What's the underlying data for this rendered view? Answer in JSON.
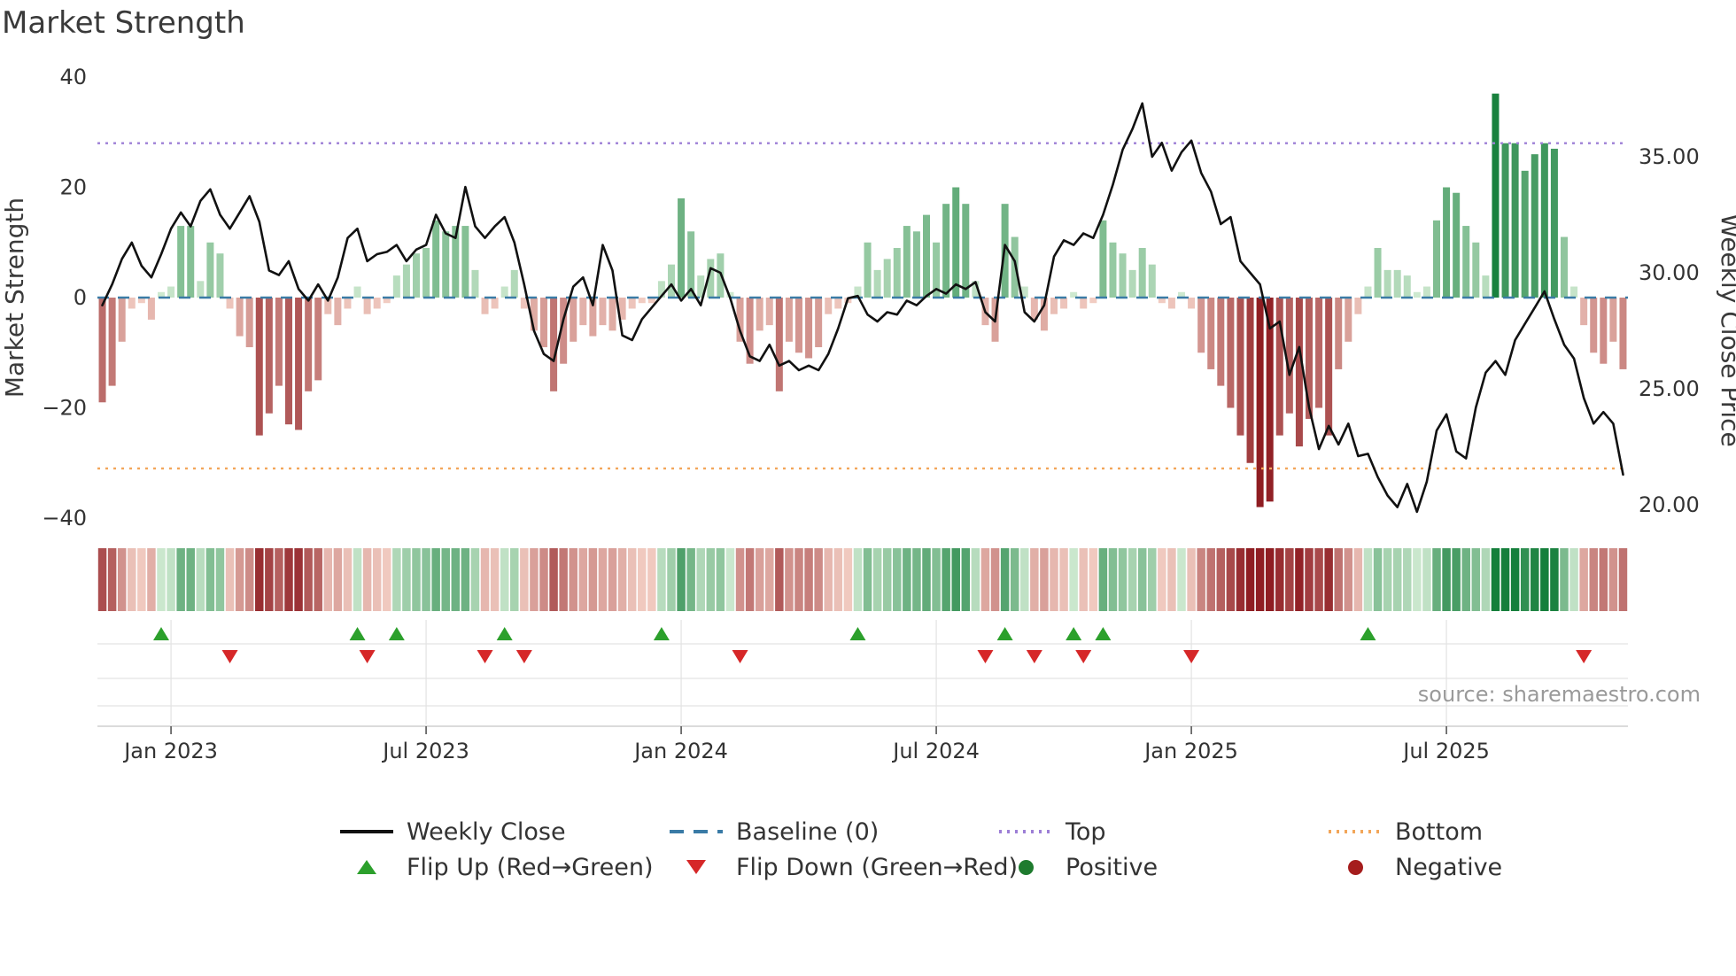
{
  "title": "Market Strength",
  "source": "source: sharemaestro.com",
  "axes": {
    "left_label": "Market Strength",
    "right_label": "Weekly Close Price",
    "left_ticks": [
      {
        "value": -40,
        "label": "−40"
      },
      {
        "value": -20,
        "label": "−20"
      },
      {
        "value": 0,
        "label": "0"
      },
      {
        "value": 20,
        "label": "20"
      },
      {
        "value": 40,
        "label": "40"
      }
    ],
    "right_ticks": [
      {
        "value": 20,
        "label": "20.00"
      },
      {
        "value": 25,
        "label": "25.00"
      },
      {
        "value": 30,
        "label": "30.00"
      },
      {
        "value": 35,
        "label": "35.00"
      }
    ],
    "x_ticks": [
      {
        "index": 7,
        "label": "Jan 2023"
      },
      {
        "index": 33,
        "label": "Jul 2023"
      },
      {
        "index": 59,
        "label": "Jan 2024"
      },
      {
        "index": 85,
        "label": "Jul 2024"
      },
      {
        "index": 111,
        "label": "Jan 2025"
      },
      {
        "index": 137,
        "label": "Jul 2025"
      }
    ]
  },
  "legend": [
    {
      "label": "Weekly Close",
      "type": "line"
    },
    {
      "label": "Baseline (0)",
      "type": "dashed-line"
    },
    {
      "label": "Top",
      "type": "dotted-line"
    },
    {
      "label": "Bottom",
      "type": "dotted-line"
    },
    {
      "label": "Flip Up (Red→Green)",
      "type": "triangle-up"
    },
    {
      "label": "Flip Down (Green→Red)",
      "type": "triangle-down"
    },
    {
      "label": "Positive",
      "type": "dot"
    },
    {
      "label": "Negative",
      "type": "dot"
    }
  ],
  "colors": {
    "line": "#111111",
    "baseline": "#3a7ba6",
    "top": "#9d7fd6",
    "bottom": "#f2a65a",
    "flip_up": "#2ca02c",
    "flip_down": "#d62728",
    "positive": "#1e7b2e",
    "negative": "#a51d1d",
    "pos_light": "#d8efd8",
    "pos_dark": "#157f3b",
    "neg_light": "#f7d6cb",
    "neg_dark": "#8f1d22",
    "grid": "#e3e3e3",
    "spine": "#cfcfcf",
    "text": "#333333",
    "muted": "#9a9a9a"
  },
  "chart_data": {
    "type": "bar",
    "subtype": "diverging bars with overlaid price line, heat strip and flip markers",
    "frequency": "weekly",
    "title": "Market Strength",
    "ylabel_left": "Market Strength",
    "ylabel_right": "Weekly Close Price",
    "strength_ylim": [
      -40,
      40
    ],
    "price_ylim": [
      20,
      38
    ],
    "baseline": 0,
    "top_threshold": 28,
    "bottom_threshold": -31,
    "grid": "off",
    "legend_position": "bottom",
    "strength": [
      -19,
      -16,
      -8,
      -2,
      -1,
      -4,
      1,
      2,
      13,
      13,
      3,
      10,
      8,
      -2,
      -7,
      -9,
      -25,
      -21,
      -16,
      -23,
      -24,
      -17,
      -15,
      -3,
      -5,
      -2,
      2,
      -3,
      -2,
      -1,
      4,
      6,
      8,
      9,
      14,
      12,
      13,
      13,
      5,
      -3,
      -2,
      2,
      5,
      -2,
      -6,
      -9,
      -17,
      -12,
      -8,
      -5,
      -7,
      -5,
      -6,
      -4,
      -2,
      -1,
      -1,
      3,
      6,
      18,
      12,
      4,
      7,
      8,
      1,
      -8,
      -12,
      -6,
      -5,
      -17,
      -8,
      -10,
      -11,
      -9,
      -3,
      -2,
      -1,
      2,
      10,
      5,
      7,
      9,
      13,
      12,
      15,
      10,
      17,
      20,
      17,
      3,
      -5,
      -8,
      17,
      11,
      2,
      -4,
      -6,
      -3,
      -2,
      1,
      -2,
      -1,
      14,
      10,
      8,
      5,
      9,
      6,
      -1,
      -2,
      1,
      -2,
      -10,
      -13,
      -16,
      -20,
      -25,
      -30,
      -38,
      -37,
      -25,
      -21,
      -27,
      -22,
      -20,
      -25,
      -13,
      -8,
      -3,
      2,
      9,
      5,
      5,
      4,
      1,
      2,
      14,
      20,
      19,
      13,
      10,
      4,
      37,
      28,
      28,
      23,
      26,
      28,
      27,
      11,
      2,
      -5,
      -10,
      -12,
      -8,
      -13
    ],
    "close": [
      28.6,
      29.5,
      30.6,
      31.3,
      30.3,
      29.8,
      30.8,
      31.9,
      32.6,
      32.0,
      33.1,
      33.6,
      32.5,
      31.9,
      32.6,
      33.3,
      32.2,
      30.1,
      29.9,
      30.5,
      29.3,
      28.8,
      29.5,
      28.8,
      29.8,
      31.5,
      31.9,
      30.5,
      30.8,
      30.9,
      31.2,
      30.5,
      31.0,
      31.2,
      32.5,
      31.7,
      31.5,
      33.7,
      32.0,
      31.5,
      32.0,
      32.4,
      31.3,
      29.5,
      27.5,
      26.5,
      26.2,
      28.0,
      29.4,
      29.8,
      28.6,
      31.2,
      30.1,
      27.3,
      27.1,
      28.0,
      28.5,
      29.0,
      29.5,
      28.8,
      29.3,
      28.6,
      30.2,
      30.0,
      28.9,
      27.5,
      26.4,
      26.2,
      26.9,
      26.0,
      26.2,
      25.8,
      26.0,
      25.8,
      26.5,
      27.6,
      28.9,
      29.0,
      28.2,
      27.9,
      28.3,
      28.2,
      28.8,
      28.6,
      29.0,
      29.3,
      29.1,
      29.5,
      29.3,
      29.6,
      28.3,
      27.9,
      31.2,
      30.5,
      28.3,
      27.9,
      28.6,
      30.7,
      31.4,
      31.2,
      31.7,
      31.5,
      32.5,
      33.8,
      35.3,
      36.2,
      37.3,
      35.0,
      35.6,
      34.4,
      35.2,
      35.7,
      34.3,
      33.5,
      32.1,
      32.4,
      30.5,
      30.0,
      29.5,
      27.6,
      27.9,
      25.6,
      26.8,
      24.2,
      22.4,
      23.4,
      22.6,
      23.5,
      22.1,
      22.2,
      21.2,
      20.4,
      19.9,
      20.9,
      19.7,
      21.0,
      23.2,
      23.9,
      22.3,
      22.0,
      24.2,
      25.7,
      26.2,
      25.6,
      27.1,
      27.8,
      28.5,
      29.2,
      28.0,
      26.9,
      26.3,
      24.6,
      23.5,
      24.0,
      23.5,
      21.3
    ],
    "flip_up_indices": [
      6,
      26,
      30,
      41,
      57,
      77,
      92,
      99,
      102,
      129
    ],
    "flip_down_indices": [
      13,
      27,
      39,
      43,
      65,
      90,
      95,
      100,
      111,
      151
    ]
  }
}
